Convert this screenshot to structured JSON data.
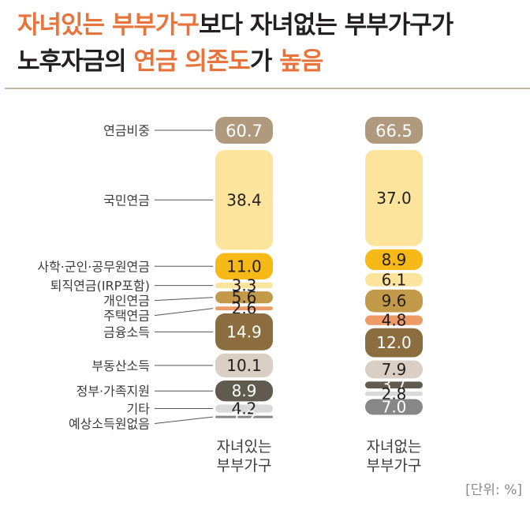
{
  "title": {
    "line1": [
      {
        "text": "자녀있는 부부가구",
        "highlight": true
      },
      {
        "text": "보다 자녀없는 부부가구가",
        "highlight": false
      }
    ],
    "line2": [
      {
        "text": "노후자금의 ",
        "highlight": false
      },
      {
        "text": "연금 의존도",
        "highlight": true
      },
      {
        "text": "가 ",
        "highlight": false
      },
      {
        "text": "높음",
        "highlight": true
      }
    ]
  },
  "unit_label": "[단위: %]",
  "colors": {
    "accent": "#e8743b",
    "연금비중": "#b09a7d",
    "국민연금": "#fde49c",
    "사학·군인·공무원연금": "#f6b918",
    "퇴직연금(IRP포함)": "#fde49c",
    "개인연금": "#c29a4a",
    "주택연금": "#ee9a66",
    "금융소득": "#8b6d3f",
    "부동산소득": "#d9cfc4",
    "정부·가족지원": "#615a4f",
    "기타": "#d9d9d9",
    "예상소득원없음": "#878787"
  },
  "chart_data": {
    "type": "bar",
    "stacked": true,
    "summary_row": {
      "name": "연금비중",
      "values": [
        60.7,
        66.5
      ]
    },
    "categories": [
      "자녀있는\n부부가구",
      "자녀없는\n부부가구"
    ],
    "series": [
      {
        "name": "국민연금",
        "values": [
          38.4,
          37.0
        ]
      },
      {
        "name": "사학·군인·공무원연금",
        "values": [
          11.0,
          8.9
        ]
      },
      {
        "name": "퇴직연금(IRP포함)",
        "values": [
          3.3,
          6.1
        ]
      },
      {
        "name": "개인연금",
        "values": [
          5.6,
          9.6
        ]
      },
      {
        "name": "주택연금",
        "values": [
          2.6,
          4.8
        ]
      },
      {
        "name": "금융소득",
        "values": [
          14.9,
          12.0
        ]
      },
      {
        "name": "부동산소득",
        "values": [
          10.1,
          7.9
        ]
      },
      {
        "name": "정부·가족지원",
        "values": [
          8.9,
          3.7
        ]
      },
      {
        "name": "기타",
        "values": [
          4.2,
          2.8
        ]
      },
      {
        "name": "예상소득원없음",
        "values": [
          1.2,
          7.0
        ]
      }
    ],
    "ylabel": "",
    "xlabel": ""
  }
}
